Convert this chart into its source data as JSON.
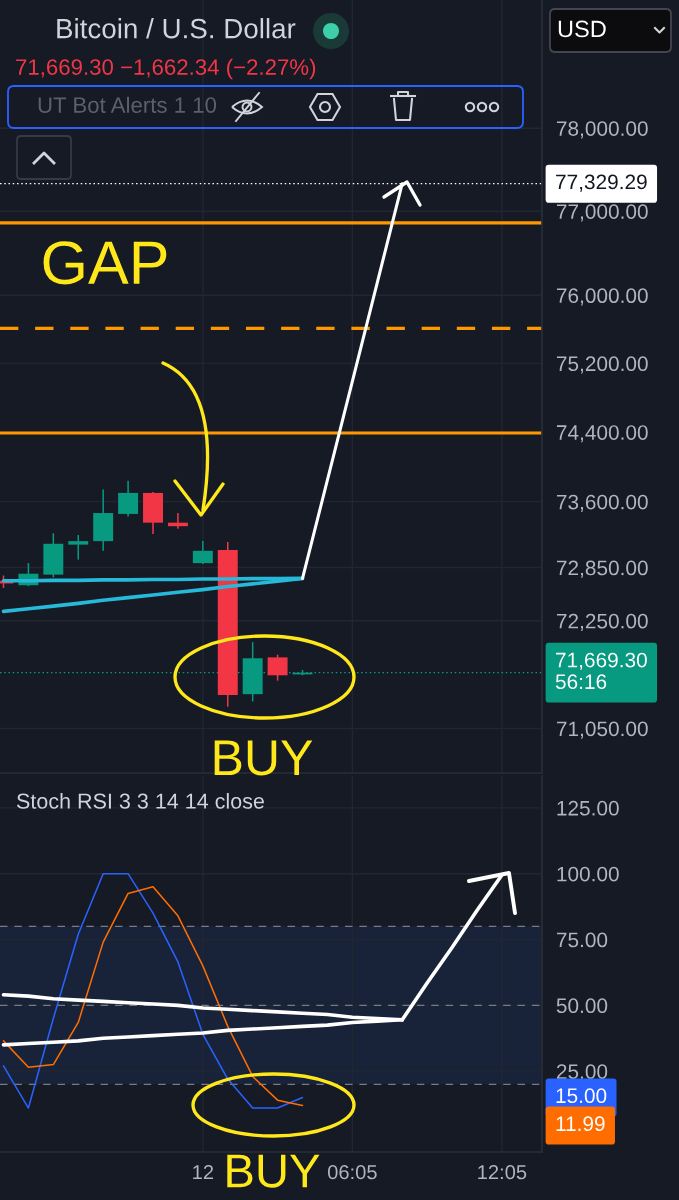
{
  "chart_data": [
    {
      "type": "candlestick",
      "title": "Bitcoin / U.S. Dollar",
      "subtitle": "71,669.30 −1,662.34 (−2.27%)",
      "annotations": [
        "UT Bot Alerts 1 10",
        "USD",
        "GAP",
        "BUY"
      ],
      "categories": [
        null,
        null,
        null,
        null,
        null,
        null,
        null,
        null,
        null,
        null,
        null,
        null,
        null,
        null,
        null,
        null,
        null,
        null,
        null,
        null,
        null,
        null
      ],
      "ohlc": [
        [
          72700,
          72760,
          72620,
          72670
        ],
        [
          72650,
          72900,
          72640,
          72780
        ],
        [
          72770,
          73240,
          72740,
          73120
        ],
        [
          73110,
          73220,
          72940,
          73150
        ],
        [
          73150,
          73740,
          73040,
          73470
        ],
        [
          73460,
          73840,
          73430,
          73700
        ],
        [
          73700,
          73710,
          73230,
          73360
        ],
        [
          73360,
          73470,
          73290,
          73320
        ],
        [
          72900,
          73150,
          72890,
          73040
        ],
        [
          73050,
          73140,
          71290,
          71420
        ],
        [
          71430,
          72010,
          71350,
          71830
        ],
        [
          71840,
          71870,
          71580,
          71640
        ],
        [
          71650,
          71700,
          71640,
          71669.3
        ],
        null,
        null,
        null,
        null,
        null,
        null,
        null,
        null,
        null
      ],
      "colors": [
        "#f23645",
        "#089981",
        "#089981",
        "#089981",
        "#089981",
        "#089981",
        "#f23645",
        "#f23645",
        "#089981",
        "#f23645",
        "#089981",
        "#f23645",
        "#089981",
        null,
        null,
        null,
        null,
        null,
        null,
        null,
        null,
        null
      ],
      "series": [
        {
          "type": "line",
          "color": "#26b9d9",
          "values": [
            72700,
            72700,
            72705,
            72705,
            72710,
            72710,
            72715,
            72715,
            72720,
            72720,
            72725,
            72725,
            72727,
            null,
            null,
            null,
            null,
            null,
            null,
            null,
            null,
            null
          ]
        },
        {
          "type": "line",
          "color": "#26b9d9",
          "values": [
            72355,
            72385,
            72415,
            72445,
            72480,
            72510,
            72540,
            72570,
            72600,
            72635,
            72665,
            72695,
            72727,
            null,
            null,
            null,
            null,
            null,
            null,
            null,
            null,
            null
          ]
        },
        {
          "type": "line",
          "color": "#ffffff",
          "values": [
            null,
            null,
            null,
            null,
            null,
            null,
            null,
            null,
            null,
            null,
            null,
            null,
            72727,
            73850,
            74990,
            76150,
            77329.29,
            null,
            null,
            null,
            null,
            null
          ]
        }
      ],
      "log": true,
      "ylim": [
        70560,
        79570
      ],
      "yticks": [
        {
          "value": 78000,
          "label": "78,000.00"
        },
        {
          "value": 77000,
          "label": "77,000.00"
        },
        {
          "value": 76000,
          "label": "76,000.00"
        },
        {
          "value": 75200,
          "label": "75,200.00"
        },
        {
          "value": 74400,
          "label": "74,400.00"
        },
        {
          "value": 73600,
          "label": "73,600.00"
        },
        {
          "value": 72850,
          "label": "72,850.00"
        },
        {
          "value": 72250,
          "label": "72,250.00"
        },
        {
          "value": 71050,
          "label": "71,050.00"
        }
      ],
      "ref_lines": [
        {
          "axis": "y",
          "value": 76860,
          "color": "#ff9800",
          "line_style": "solid"
        },
        {
          "axis": "y",
          "value": 75610,
          "color": "#ff9800",
          "line_style": "dashed"
        },
        {
          "axis": "y",
          "value": 74390,
          "color": "#ff9800",
          "line_style": "solid"
        },
        {
          "axis": "y",
          "value": 77329.29,
          "label": "77,329.29",
          "color": "#ffffff",
          "line_style": "dotted"
        },
        {
          "axis": "y",
          "value": 71669.3,
          "label": "71,669.30\n56:16",
          "color": "#089981",
          "line_style": "dotted"
        }
      ],
      "grid": true
    },
    {
      "type": "line",
      "title": "Stoch RSI 3 3 14 14 close",
      "annotations": [
        "BUY",
        "15.00",
        "11.99"
      ],
      "categories": [
        null,
        null,
        null,
        null,
        null,
        null,
        null,
        null,
        "12",
        null,
        null,
        null,
        null,
        null,
        "06:05",
        null,
        null,
        null,
        null,
        null,
        "12:05",
        null
      ],
      "series": [
        {
          "color": "#2962ff",
          "values": [
            27,
            11,
            45,
            77,
            100,
            100,
            85,
            66.5,
            39,
            22,
            11,
            11,
            15,
            null,
            null,
            null,
            null,
            null,
            null,
            null,
            null,
            null
          ]
        },
        {
          "color": "#ff6d00",
          "values": [
            36.5,
            26.5,
            27.5,
            43.5,
            74,
            92.5,
            95,
            84,
            65,
            42,
            23,
            14,
            11.99,
            null,
            null,
            null,
            null,
            null,
            null,
            null,
            null,
            null
          ]
        },
        {
          "type": "line",
          "color": "#ffffff",
          "values": [
            54,
            53.5,
            52.5,
            52,
            51.5,
            51,
            50.5,
            50,
            49,
            48.5,
            48,
            47.5,
            47,
            46.5,
            45.5,
            45,
            44.5,
            null,
            null,
            null,
            null,
            null
          ]
        },
        {
          "type": "line",
          "color": "#ffffff",
          "values": [
            35,
            35.5,
            36,
            36.5,
            37.5,
            38,
            38.5,
            39,
            39.5,
            40.5,
            41,
            41.5,
            42,
            42.5,
            43.5,
            44,
            44.5,
            null,
            null,
            null,
            null,
            null
          ]
        },
        {
          "type": "line",
          "color": "#ffffff",
          "values": [
            null,
            null,
            null,
            null,
            null,
            null,
            null,
            null,
            null,
            null,
            null,
            null,
            null,
            null,
            null,
            null,
            44.5,
            58.5,
            72,
            86,
            99.5,
            null
          ]
        }
      ],
      "ylim": [
        -5.7,
        137.1
      ],
      "yticks": [
        {
          "value": 25,
          "label": "25.00"
        },
        {
          "value": 50,
          "label": "50.00"
        },
        {
          "value": 75,
          "label": "75.00"
        },
        {
          "value": 100,
          "label": "100.00"
        },
        {
          "value": 125,
          "label": "125.00"
        }
      ],
      "bands": [
        {
          "axis": "y",
          "from": 20,
          "to": 80,
          "color": "#182339"
        }
      ],
      "ref_lines": [
        {
          "axis": "y",
          "value": 80,
          "color": "#787b86",
          "line_style": "dashed"
        },
        {
          "axis": "y",
          "value": 50,
          "color": "#787b86",
          "line_style": "dashed"
        },
        {
          "axis": "y",
          "value": 20,
          "color": "#787b86",
          "line_style": "dashed"
        }
      ],
      "grid": true
    }
  ]
}
